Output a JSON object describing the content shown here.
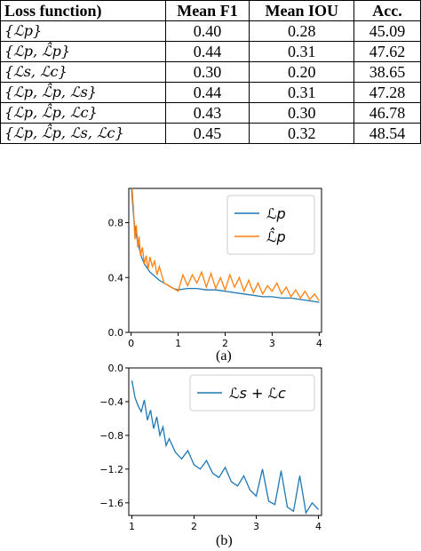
{
  "table": {
    "headers": [
      "Loss function)",
      "Mean F1",
      "Mean IOU",
      "Acc."
    ],
    "rows": [
      [
        "{ℒp}",
        "0.40",
        "0.28",
        "45.09"
      ],
      [
        "{ℒp, ℒ̂p}",
        "0.44",
        "0.31",
        "47.62"
      ],
      [
        "{ℒs, ℒc}",
        "0.30",
        "0.20",
        "38.65"
      ],
      [
        "{ℒp, ℒ̂p, ℒs}",
        "0.44",
        "0.31",
        "47.28"
      ],
      [
        "{ℒp, ℒ̂p, ℒc}",
        "0.43",
        "0.30",
        "46.78"
      ],
      [
        "{ℒp, ℒ̂p, ℒs, ℒc}",
        "0.45",
        "0.32",
        "48.54"
      ]
    ]
  },
  "captions": {
    "a": "(a)",
    "b": "(b)"
  },
  "colors": {
    "blue": "#1f77b4",
    "orange": "#ff7f0e"
  },
  "chart_data": [
    {
      "type": "line",
      "xlim": [
        -0.05,
        4.05
      ],
      "ylim": [
        0.0,
        1.05
      ],
      "xticks": [
        0,
        1,
        2,
        3,
        4
      ],
      "yticks": [
        0.0,
        0.4,
        0.8
      ],
      "ytick_labels": [
        "0.0",
        "0.4",
        "0.8"
      ],
      "xtick_labels": [
        "0",
        "1",
        "2",
        "3",
        "4"
      ],
      "legend_position": "top-right",
      "series": [
        {
          "name": "ℒp",
          "color": "#1f77b4",
          "x": [
            0,
            0.03,
            0.06,
            0.1,
            0.14,
            0.18,
            0.22,
            0.28,
            0.34,
            0.4,
            0.5,
            0.6,
            0.7,
            0.8,
            0.9,
            1.0,
            1.2,
            1.4,
            1.6,
            1.8,
            2.0,
            2.2,
            2.4,
            2.6,
            2.8,
            3.0,
            3.2,
            3.4,
            3.6,
            3.8,
            4.0
          ],
          "y": [
            1.1,
            0.95,
            0.82,
            0.72,
            0.66,
            0.6,
            0.55,
            0.5,
            0.47,
            0.44,
            0.41,
            0.38,
            0.36,
            0.34,
            0.32,
            0.31,
            0.32,
            0.32,
            0.31,
            0.31,
            0.3,
            0.29,
            0.28,
            0.27,
            0.26,
            0.26,
            0.25,
            0.25,
            0.24,
            0.23,
            0.22
          ]
        },
        {
          "name": "ℒ̂p",
          "color": "#ff7f0e",
          "x": [
            0,
            0.02,
            0.05,
            0.08,
            0.11,
            0.14,
            0.17,
            0.2,
            0.24,
            0.28,
            0.32,
            0.36,
            0.4,
            0.45,
            0.5,
            0.55,
            0.6,
            0.7,
            0.8,
            0.9,
            1.0,
            1.1,
            1.2,
            1.3,
            1.4,
            1.5,
            1.6,
            1.7,
            1.8,
            1.9,
            2.0,
            2.1,
            2.2,
            2.3,
            2.4,
            2.5,
            2.6,
            2.7,
            2.8,
            2.9,
            3.0,
            3.1,
            3.2,
            3.3,
            3.4,
            3.5,
            3.6,
            3.7,
            3.8,
            3.9,
            4.0
          ],
          "y": [
            1.2,
            1.05,
            0.9,
            0.68,
            0.78,
            0.62,
            0.7,
            0.56,
            0.62,
            0.5,
            0.56,
            0.46,
            0.55,
            0.48,
            0.52,
            0.42,
            0.48,
            0.36,
            0.34,
            0.32,
            0.3,
            0.42,
            0.34,
            0.42,
            0.36,
            0.44,
            0.33,
            0.43,
            0.32,
            0.4,
            0.31,
            0.42,
            0.33,
            0.4,
            0.3,
            0.38,
            0.29,
            0.36,
            0.28,
            0.34,
            0.3,
            0.36,
            0.28,
            0.33,
            0.26,
            0.31,
            0.25,
            0.3,
            0.24,
            0.28,
            0.23
          ]
        }
      ]
    },
    {
      "type": "line",
      "xlim": [
        0.95,
        4.05
      ],
      "ylim": [
        -1.75,
        0.0
      ],
      "xticks": [
        1,
        2,
        3,
        4
      ],
      "yticks": [
        0.0,
        -0.4,
        -0.8,
        -1.2,
        -1.6
      ],
      "ytick_labels": [
        "0.0",
        "−0.4",
        "−0.8",
        "−1.2",
        "−1.6"
      ],
      "xtick_labels": [
        "1",
        "2",
        "3",
        "4"
      ],
      "legend_position": "top-right",
      "series": [
        {
          "name": "ℒs + ℒc",
          "color": "#1f77b4",
          "x": [
            1.0,
            1.05,
            1.1,
            1.15,
            1.2,
            1.25,
            1.3,
            1.35,
            1.4,
            1.45,
            1.5,
            1.55,
            1.6,
            1.7,
            1.8,
            1.9,
            2.0,
            2.1,
            2.2,
            2.3,
            2.4,
            2.5,
            2.6,
            2.7,
            2.8,
            2.9,
            3.0,
            3.1,
            3.2,
            3.3,
            3.4,
            3.5,
            3.6,
            3.7,
            3.8,
            3.9,
            4.0
          ],
          "y": [
            -0.15,
            -0.35,
            -0.45,
            -0.52,
            -0.38,
            -0.62,
            -0.5,
            -0.72,
            -0.58,
            -0.8,
            -0.7,
            -0.92,
            -0.84,
            -1.0,
            -1.08,
            -0.98,
            -1.15,
            -1.2,
            -1.1,
            -1.25,
            -1.3,
            -1.18,
            -1.35,
            -1.4,
            -1.28,
            -1.45,
            -1.52,
            -1.2,
            -1.58,
            -1.62,
            -1.22,
            -1.65,
            -1.7,
            -1.28,
            -1.72,
            -1.6,
            -1.68
          ]
        }
      ]
    }
  ]
}
